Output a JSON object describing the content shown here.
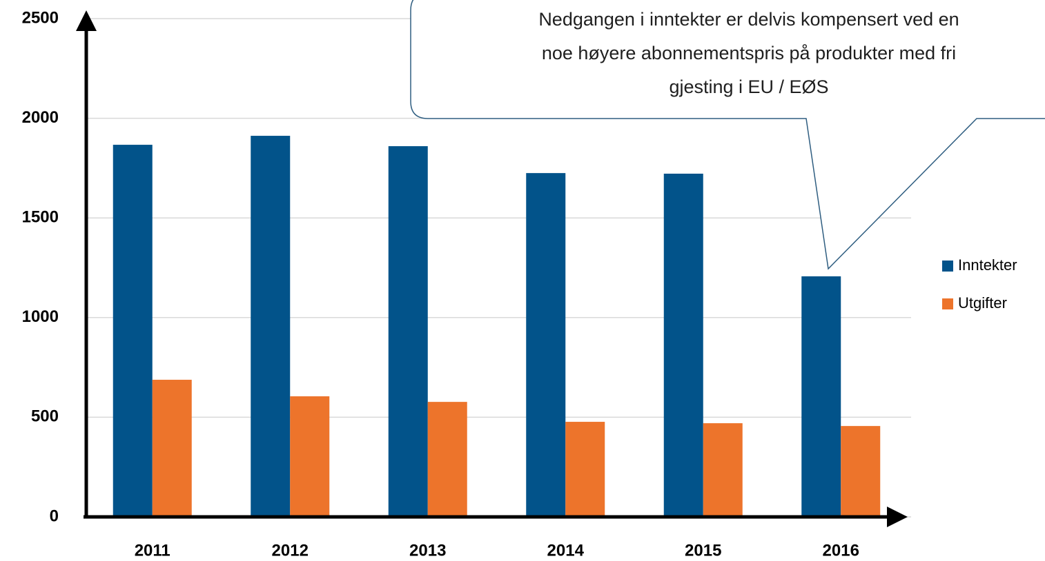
{
  "chart_data": {
    "type": "bar",
    "categories": [
      "2011",
      "2012",
      "2013",
      "2014",
      "2015",
      "2016"
    ],
    "series": [
      {
        "name": "Inntekter",
        "color": "#02538a",
        "values": [
          1867,
          1912,
          1860,
          1725,
          1722,
          1207
        ]
      },
      {
        "name": "Utgifter",
        "color": "#ed742b",
        "values": [
          688,
          605,
          577,
          477,
          470,
          456
        ]
      }
    ],
    "ylim": [
      0,
      2500
    ],
    "yticks": [
      0,
      500,
      1000,
      1500,
      2000,
      2500
    ],
    "grid": true,
    "legend": "right",
    "annotation": [
      "Nedgangen i inntekter er delvis kompensert ved en",
      "noe høyere abonnementspris på produkter med fri",
      "gjesting i EU / EØS"
    ]
  }
}
